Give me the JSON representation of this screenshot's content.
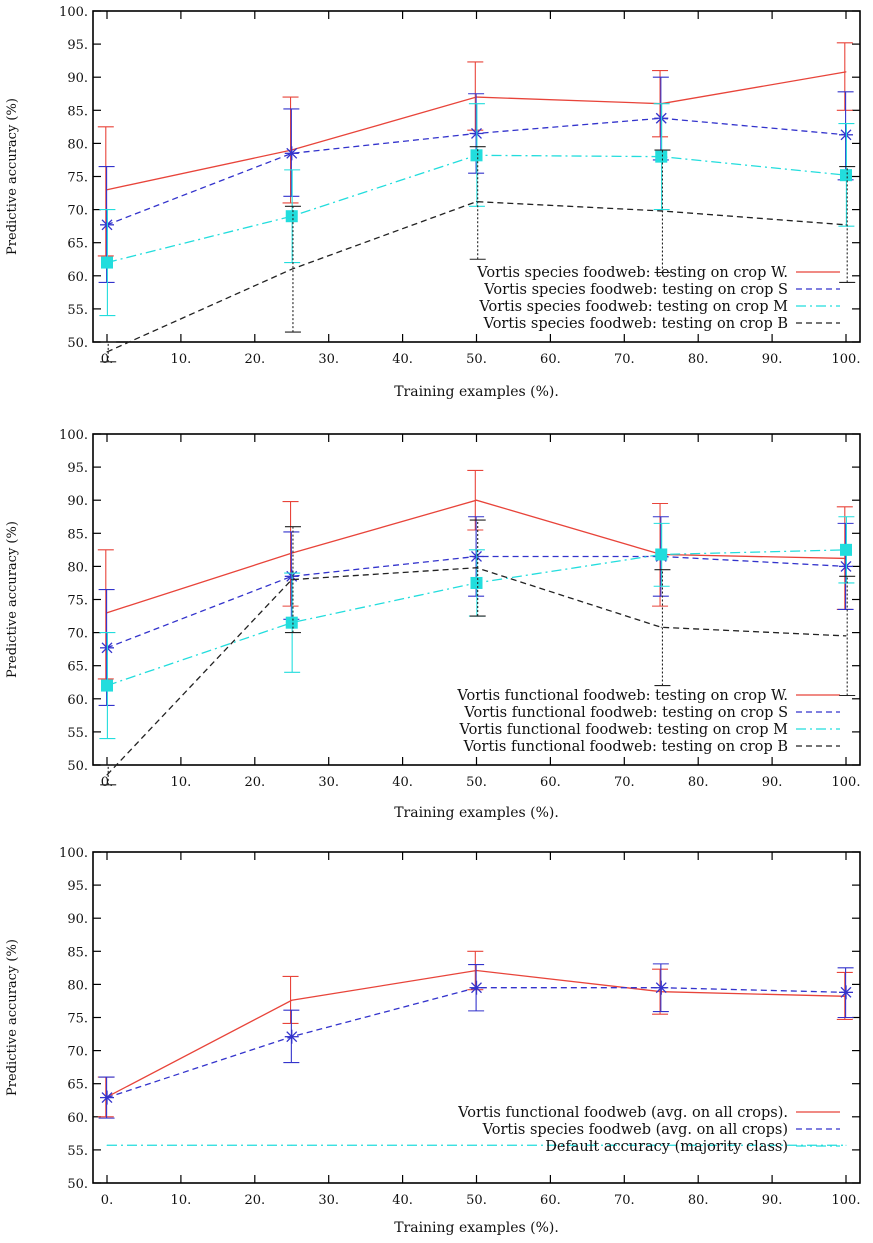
{
  "chart_data": [
    {
      "type": "line",
      "xlabel": "Training examples (%).",
      "ylabel": "Predictive accuracy (%)",
      "xlim": [
        0,
        100
      ],
      "ylim": [
        50,
        100
      ],
      "x_ticks": [
        "0.",
        "10.",
        "20.",
        "30.",
        "40.",
        "50.",
        "60.",
        "70.",
        "80.",
        "90.",
        "100."
      ],
      "y_ticks": [
        "50.",
        "55.",
        "60.",
        "65.",
        "70.",
        "75.",
        "80.",
        "85.",
        "90.",
        "95.",
        "100."
      ],
      "grid": false,
      "legend_position": "lower-right",
      "x": [
        0,
        25,
        50,
        75,
        100
      ],
      "series": [
        {
          "name": "Vortis species foodweb: testing on crop W.",
          "color": "#e8443a",
          "dash": "solid",
          "marker": "none",
          "values": [
            73,
            79,
            87,
            86,
            90.8
          ],
          "err_low": [
            63,
            71,
            82,
            81,
            85
          ],
          "err_high": [
            82.5,
            87,
            92.3,
            91,
            95.2
          ]
        },
        {
          "name": "Vortis species foodweb: testing on crop S",
          "color": "#3333cc",
          "dash": "dashed",
          "marker": "star",
          "values": [
            67.7,
            78.5,
            81.5,
            83.8,
            81.3
          ],
          "err_low": [
            59,
            72,
            75.5,
            77.5,
            74.5
          ],
          "err_high": [
            76.5,
            85.2,
            87.5,
            90,
            87.8
          ]
        },
        {
          "name": "Vortis species foodweb: testing on crop M",
          "color": "#22dddd",
          "dash": "dashdot",
          "marker": "square",
          "values": [
            62,
            69,
            78.2,
            78,
            75.2
          ],
          "err_low": [
            54,
            62,
            70.5,
            70,
            67.5
          ],
          "err_high": [
            70,
            76,
            86,
            86,
            83
          ]
        },
        {
          "name": "Vortis species foodweb: testing on crop B",
          "color": "#222222",
          "dash": "dashed",
          "marker": "none",
          "values": [
            48.5,
            61,
            71.2,
            69.8,
            67.7
          ],
          "err_low": [
            47,
            51.5,
            62.5,
            60.5,
            59
          ],
          "err_high": [
            50,
            70.5,
            79.5,
            79,
            76.5
          ]
        }
      ]
    },
    {
      "type": "line",
      "xlabel": "Training examples (%).",
      "ylabel": "Predictive accuracy (%)",
      "xlim": [
        0,
        100
      ],
      "ylim": [
        50,
        100
      ],
      "x_ticks": [
        "0.",
        "10.",
        "20.",
        "30.",
        "40.",
        "50.",
        "60.",
        "70.",
        "80.",
        "90.",
        "100."
      ],
      "y_ticks": [
        "50.",
        "55.",
        "60.",
        "65.",
        "70.",
        "75.",
        "80.",
        "85.",
        "90.",
        "95.",
        "100."
      ],
      "grid": false,
      "legend_position": "lower-right",
      "x": [
        0,
        25,
        50,
        75,
        100
      ],
      "series": [
        {
          "name": "Vortis functional foodweb: testing on crop W.",
          "color": "#e8443a",
          "dash": "solid",
          "marker": "none",
          "values": [
            73,
            82,
            90,
            81.8,
            81.2
          ],
          "err_low": [
            63,
            74,
            85.5,
            74,
            73.5
          ],
          "err_high": [
            82.5,
            89.8,
            94.5,
            89.5,
            89
          ]
        },
        {
          "name": "Vortis functional foodweb: testing on crop S",
          "color": "#3333cc",
          "dash": "dashed",
          "marker": "star",
          "values": [
            67.7,
            78.5,
            81.5,
            81.5,
            80
          ],
          "err_low": [
            59,
            72,
            75.5,
            75.5,
            73.5
          ],
          "err_high": [
            76.5,
            85.2,
            87.5,
            87.5,
            86.5
          ]
        },
        {
          "name": "Vortis functional foodweb: testing on crop M",
          "color": "#22dddd",
          "dash": "dashdot",
          "marker": "square",
          "values": [
            62,
            71.5,
            77.5,
            81.8,
            82.5
          ],
          "err_low": [
            54,
            64,
            72.5,
            77,
            77.5
          ],
          "err_high": [
            70,
            79,
            82.5,
            86.5,
            87.5
          ]
        },
        {
          "name": "Vortis functional foodweb: testing on crop B",
          "color": "#222222",
          "dash": "dashed",
          "marker": "none",
          "values": [
            48.5,
            78,
            79.8,
            70.8,
            69.5
          ],
          "err_low": [
            47,
            70,
            72.5,
            62,
            60.5
          ],
          "err_high": [
            50,
            86,
            87,
            79.5,
            78.5
          ]
        }
      ]
    },
    {
      "type": "line",
      "xlabel": "Training examples (%).",
      "ylabel": "Predictive accuracy (%)",
      "xlim": [
        0,
        100
      ],
      "ylim": [
        50,
        100
      ],
      "x_ticks": [
        "0.",
        "10.",
        "20.",
        "30.",
        "40.",
        "50.",
        "60.",
        "70.",
        "80.",
        "90.",
        "100."
      ],
      "y_ticks": [
        "50.",
        "55.",
        "60.",
        "65.",
        "70.",
        "75.",
        "80.",
        "85.",
        "90.",
        "95.",
        "100."
      ],
      "grid": false,
      "legend_position": "lower-right",
      "x": [
        0,
        25,
        50,
        75,
        100
      ],
      "series": [
        {
          "name": "Vortis functional foodweb (avg. on all crops).",
          "color": "#e8443a",
          "dash": "solid",
          "marker": "none",
          "values": [
            63,
            77.6,
            82.1,
            78.9,
            78.2
          ],
          "err_low": [
            60,
            74.1,
            79.2,
            75.5,
            74.7
          ],
          "err_high": [
            66,
            81.2,
            85,
            82.3,
            81.8
          ]
        },
        {
          "name": "Vortis species foodweb (avg. on all crops)",
          "color": "#3333cc",
          "dash": "dashed",
          "marker": "star",
          "values": [
            62.9,
            72.1,
            79.5,
            79.5,
            78.8
          ],
          "err_low": [
            59.8,
            68.2,
            76,
            75.9,
            75
          ],
          "err_high": [
            66,
            76.1,
            83,
            83.1,
            82.5
          ]
        },
        {
          "name": "Default accuracy (majority class)",
          "color": "#22dddd",
          "dash": "dashdot",
          "marker": "none",
          "values": [
            55.7,
            55.7,
            55.7,
            55.7,
            55.7
          ]
        }
      ]
    }
  ]
}
